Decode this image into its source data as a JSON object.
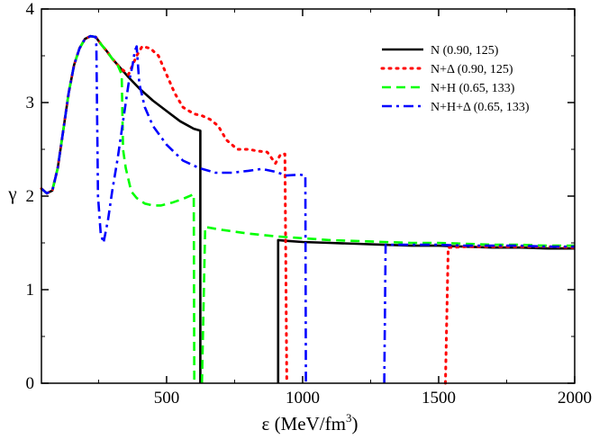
{
  "chart_data": {
    "type": "line",
    "title": "",
    "xlabel": "ε (MeV/fm",
    "xlabel_sup": "3",
    "xlabel_close": ")",
    "ylabel": "γ",
    "xlim": [
      40,
      2000
    ],
    "ylim": [
      0,
      4
    ],
    "xticks": [
      500,
      1000,
      1500,
      2000
    ],
    "xtick_labels": [
      "500",
      "1000",
      "1500",
      "2000"
    ],
    "yticks": [
      0,
      1,
      2,
      3,
      4
    ],
    "ytick_labels": [
      "0",
      "1",
      "2",
      "3",
      "4"
    ],
    "grid": false,
    "legend_position": "top-right",
    "series": [
      {
        "name": "N (0.90, 125)",
        "color": "#000000",
        "dash": "solid",
        "points": [
          [
            40,
            2.08
          ],
          [
            60,
            2.03
          ],
          [
            80,
            2.06
          ],
          [
            100,
            2.3
          ],
          [
            120,
            2.7
          ],
          [
            140,
            3.1
          ],
          [
            160,
            3.4
          ],
          [
            180,
            3.58
          ],
          [
            200,
            3.68
          ],
          [
            220,
            3.71
          ],
          [
            240,
            3.7
          ],
          [
            260,
            3.62
          ],
          [
            280,
            3.55
          ],
          [
            300,
            3.47
          ],
          [
            330,
            3.37
          ],
          [
            360,
            3.27
          ],
          [
            400,
            3.15
          ],
          [
            450,
            3.02
          ],
          [
            500,
            2.91
          ],
          [
            550,
            2.8
          ],
          [
            600,
            2.72
          ],
          [
            624,
            2.7
          ],
          [
            624,
            0.0
          ]
        ],
        "segments2": [
          [
            910,
            0.0
          ],
          [
            910,
            1.53
          ],
          [
            950,
            1.52
          ],
          [
            1000,
            1.51
          ],
          [
            1100,
            1.5
          ],
          [
            1200,
            1.49
          ],
          [
            1300,
            1.48
          ],
          [
            1400,
            1.47
          ],
          [
            1500,
            1.47
          ],
          [
            1600,
            1.46
          ],
          [
            1700,
            1.45
          ],
          [
            1800,
            1.45
          ],
          [
            1900,
            1.44
          ],
          [
            2000,
            1.44
          ]
        ]
      },
      {
        "name": "N+Δ (0.90, 125)",
        "color": "#ff0000",
        "dash": "dotted",
        "points": [
          [
            40,
            2.08
          ],
          [
            60,
            2.03
          ],
          [
            80,
            2.06
          ],
          [
            100,
            2.3
          ],
          [
            120,
            2.7
          ],
          [
            140,
            3.1
          ],
          [
            160,
            3.4
          ],
          [
            180,
            3.58
          ],
          [
            200,
            3.68
          ],
          [
            220,
            3.71
          ],
          [
            240,
            3.7
          ],
          [
            260,
            3.62
          ],
          [
            280,
            3.55
          ],
          [
            300,
            3.47
          ],
          [
            330,
            3.37
          ],
          [
            360,
            3.3
          ],
          [
            390,
            3.5
          ],
          [
            410,
            3.6
          ],
          [
            440,
            3.58
          ],
          [
            470,
            3.5
          ],
          [
            500,
            3.3
          ],
          [
            530,
            3.1
          ],
          [
            560,
            2.95
          ],
          [
            600,
            2.88
          ],
          [
            630,
            2.86
          ],
          [
            660,
            2.82
          ],
          [
            690,
            2.75
          ],
          [
            720,
            2.6
          ],
          [
            760,
            2.5
          ],
          [
            800,
            2.5
          ],
          [
            840,
            2.48
          ],
          [
            870,
            2.47
          ],
          [
            900,
            2.35
          ],
          [
            920,
            2.45
          ],
          [
            935,
            2.45
          ],
          [
            942,
            0.0
          ]
        ],
        "segments2": [
          [
            1525,
            0.0
          ],
          [
            1535,
            1.45
          ],
          [
            1600,
            1.46
          ],
          [
            1700,
            1.46
          ],
          [
            1800,
            1.46
          ],
          [
            1900,
            1.46
          ],
          [
            2000,
            1.45
          ]
        ]
      },
      {
        "name": "N+H (0.65, 133)",
        "color": "#00ff00",
        "dash": "dashed",
        "points": [
          [
            40,
            2.08
          ],
          [
            60,
            2.03
          ],
          [
            80,
            2.06
          ],
          [
            100,
            2.3
          ],
          [
            120,
            2.7
          ],
          [
            140,
            3.1
          ],
          [
            160,
            3.4
          ],
          [
            180,
            3.58
          ],
          [
            200,
            3.68
          ],
          [
            220,
            3.71
          ],
          [
            240,
            3.7
          ],
          [
            260,
            3.62
          ],
          [
            280,
            3.55
          ],
          [
            300,
            3.47
          ],
          [
            320,
            3.4
          ],
          [
            335,
            3.3
          ],
          [
            340,
            2.5
          ],
          [
            350,
            2.3
          ],
          [
            370,
            2.05
          ],
          [
            390,
            1.98
          ],
          [
            420,
            1.92
          ],
          [
            450,
            1.9
          ],
          [
            480,
            1.9
          ],
          [
            520,
            1.93
          ],
          [
            560,
            1.97
          ],
          [
            600,
            2.02
          ],
          [
            602,
            0.0
          ]
        ],
        "segments2": [
          [
            630,
            0.0
          ],
          [
            642,
            1.67
          ],
          [
            700,
            1.64
          ],
          [
            800,
            1.6
          ],
          [
            900,
            1.57
          ],
          [
            1000,
            1.55
          ],
          [
            1100,
            1.53
          ],
          [
            1200,
            1.52
          ],
          [
            1300,
            1.51
          ],
          [
            1400,
            1.5
          ],
          [
            1500,
            1.5
          ],
          [
            1600,
            1.49
          ],
          [
            1700,
            1.48
          ],
          [
            1800,
            1.48
          ],
          [
            1900,
            1.47
          ],
          [
            2000,
            1.47
          ]
        ]
      },
      {
        "name": "N+H+Δ (0.65, 133)",
        "color": "#0000ff",
        "dash": "dashdot",
        "points": [
          [
            40,
            2.08
          ],
          [
            60,
            2.03
          ],
          [
            80,
            2.06
          ],
          [
            100,
            2.3
          ],
          [
            120,
            2.7
          ],
          [
            140,
            3.1
          ],
          [
            160,
            3.4
          ],
          [
            180,
            3.58
          ],
          [
            200,
            3.68
          ],
          [
            220,
            3.71
          ],
          [
            240,
            3.7
          ],
          [
            242,
            3.6
          ],
          [
            248,
            2.0
          ],
          [
            258,
            1.6
          ],
          [
            268,
            1.5
          ],
          [
            285,
            1.75
          ],
          [
            300,
            2.05
          ],
          [
            320,
            2.4
          ],
          [
            340,
            2.8
          ],
          [
            360,
            3.2
          ],
          [
            375,
            3.4
          ],
          [
            383,
            3.55
          ],
          [
            390,
            3.6
          ],
          [
            400,
            3.2
          ],
          [
            420,
            2.95
          ],
          [
            450,
            2.75
          ],
          [
            500,
            2.55
          ],
          [
            560,
            2.38
          ],
          [
            620,
            2.3
          ],
          [
            680,
            2.25
          ],
          [
            740,
            2.25
          ],
          [
            800,
            2.27
          ],
          [
            850,
            2.29
          ],
          [
            900,
            2.26
          ],
          [
            940,
            2.22
          ],
          [
            990,
            2.23
          ],
          [
            1010,
            2.22
          ],
          [
            1012,
            0.0
          ]
        ],
        "segments2": [
          [
            1300,
            0.0
          ],
          [
            1305,
            1.48
          ],
          [
            1400,
            1.48
          ],
          [
            1500,
            1.48
          ],
          [
            1600,
            1.47
          ],
          [
            1700,
            1.47
          ],
          [
            1800,
            1.47
          ],
          [
            1900,
            1.46
          ],
          [
            2000,
            1.46
          ]
        ]
      }
    ]
  }
}
